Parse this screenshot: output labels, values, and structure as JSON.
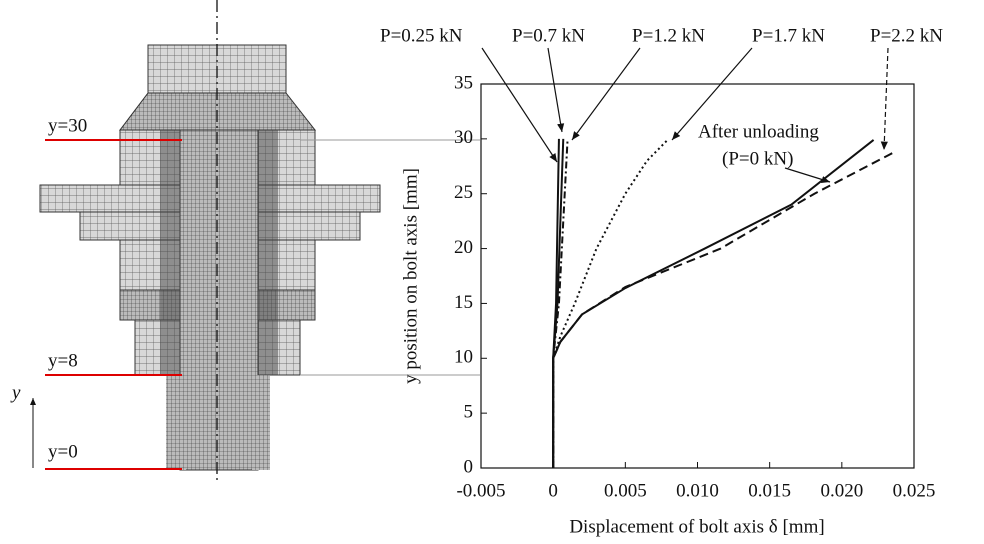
{
  "chart_data": {
    "type": "line",
    "xlabel": "Displacement of bolt axis δ [mm]",
    "ylabel": "y position on bolt axis [mm]",
    "xlim": [
      -0.005,
      0.025
    ],
    "xticks": [
      -0.005,
      0,
      0.005,
      {
        "value": 0.01,
        "label": "0.010"
      },
      0.015,
      {
        "value": 0.02,
        "label": "0.020"
      },
      0.025
    ],
    "ylim": [
      0,
      35
    ],
    "yticks": [
      0,
      5,
      10,
      15,
      20,
      25,
      30,
      35
    ],
    "series": [
      {
        "name": "P=0.25 kN",
        "color": "#111111",
        "style": "solid",
        "x": [
          0,
          0,
          0.0002,
          0.0004
        ],
        "y": [
          0,
          10,
          15,
          30
        ]
      },
      {
        "name": "P=0.7 kN",
        "color": "#111111",
        "style": "solid",
        "x": [
          0,
          0,
          0.0003,
          0.0007
        ],
        "y": [
          0,
          10,
          15,
          30
        ]
      },
      {
        "name": "P=1.2 kN",
        "color": "#111111",
        "style": "dashdot",
        "x": [
          0,
          0,
          0.0004,
          0.001
        ],
        "y": [
          0,
          10,
          15,
          30
        ]
      },
      {
        "name": "P=1.7 kN",
        "color": "#111111",
        "style": "dotted",
        "x": [
          0,
          0,
          0.0005,
          0.0015,
          0.003,
          0.005,
          0.0065,
          0.008
        ],
        "y": [
          0,
          10,
          12,
          15,
          20,
          25,
          28,
          30
        ]
      },
      {
        "name": "P=2.2 kN",
        "color": "#111111",
        "style": "dashed",
        "x": [
          0,
          0,
          0.0005,
          0.002,
          0.005,
          0.0116,
          0.0181,
          0.0235
        ],
        "y": [
          0,
          10,
          11.5,
          14,
          16.5,
          20,
          25,
          28.7
        ]
      },
      {
        "name": "After unloading",
        "sub": "(P=0 kN)",
        "color": "#111111",
        "style": "solid",
        "x": [
          0,
          0,
          0.0005,
          0.002,
          0.005,
          0.0105,
          0.0165,
          0.0222
        ],
        "y": [
          0,
          10,
          11.5,
          14,
          16.4,
          20,
          24,
          29.9
        ]
      }
    ]
  },
  "diagram": {
    "labels": [
      "y=30",
      "y=8",
      "y=0"
    ],
    "axis_label": "y"
  }
}
